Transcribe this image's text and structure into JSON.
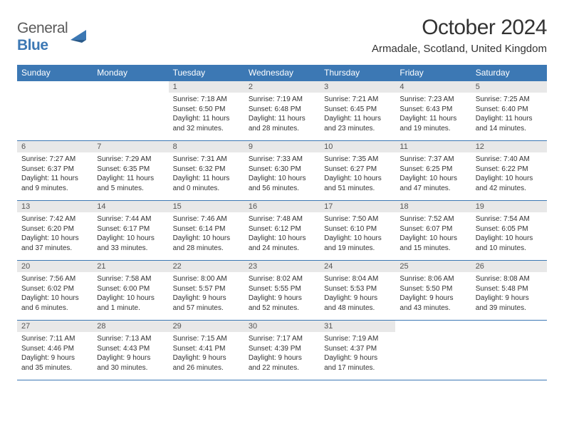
{
  "logo": {
    "text_general": "General",
    "text_blue": "Blue"
  },
  "header": {
    "month_title": "October 2024",
    "location": "Armadale, Scotland, United Kingdom"
  },
  "colors": {
    "header_bg": "#3c78b4",
    "header_text": "#ffffff",
    "daynum_bg": "#e8e8e8",
    "border": "#3c78b4",
    "body_text": "#333333"
  },
  "day_names": [
    "Sunday",
    "Monday",
    "Tuesday",
    "Wednesday",
    "Thursday",
    "Friday",
    "Saturday"
  ],
  "weeks": [
    [
      null,
      null,
      {
        "n": "1",
        "sr": "7:18 AM",
        "ss": "6:50 PM",
        "dl": "11 hours and 32 minutes."
      },
      {
        "n": "2",
        "sr": "7:19 AM",
        "ss": "6:48 PM",
        "dl": "11 hours and 28 minutes."
      },
      {
        "n": "3",
        "sr": "7:21 AM",
        "ss": "6:45 PM",
        "dl": "11 hours and 23 minutes."
      },
      {
        "n": "4",
        "sr": "7:23 AM",
        "ss": "6:43 PM",
        "dl": "11 hours and 19 minutes."
      },
      {
        "n": "5",
        "sr": "7:25 AM",
        "ss": "6:40 PM",
        "dl": "11 hours and 14 minutes."
      }
    ],
    [
      {
        "n": "6",
        "sr": "7:27 AM",
        "ss": "6:37 PM",
        "dl": "11 hours and 9 minutes."
      },
      {
        "n": "7",
        "sr": "7:29 AM",
        "ss": "6:35 PM",
        "dl": "11 hours and 5 minutes."
      },
      {
        "n": "8",
        "sr": "7:31 AM",
        "ss": "6:32 PM",
        "dl": "11 hours and 0 minutes."
      },
      {
        "n": "9",
        "sr": "7:33 AM",
        "ss": "6:30 PM",
        "dl": "10 hours and 56 minutes."
      },
      {
        "n": "10",
        "sr": "7:35 AM",
        "ss": "6:27 PM",
        "dl": "10 hours and 51 minutes."
      },
      {
        "n": "11",
        "sr": "7:37 AM",
        "ss": "6:25 PM",
        "dl": "10 hours and 47 minutes."
      },
      {
        "n": "12",
        "sr": "7:40 AM",
        "ss": "6:22 PM",
        "dl": "10 hours and 42 minutes."
      }
    ],
    [
      {
        "n": "13",
        "sr": "7:42 AM",
        "ss": "6:20 PM",
        "dl": "10 hours and 37 minutes."
      },
      {
        "n": "14",
        "sr": "7:44 AM",
        "ss": "6:17 PM",
        "dl": "10 hours and 33 minutes."
      },
      {
        "n": "15",
        "sr": "7:46 AM",
        "ss": "6:14 PM",
        "dl": "10 hours and 28 minutes."
      },
      {
        "n": "16",
        "sr": "7:48 AM",
        "ss": "6:12 PM",
        "dl": "10 hours and 24 minutes."
      },
      {
        "n": "17",
        "sr": "7:50 AM",
        "ss": "6:10 PM",
        "dl": "10 hours and 19 minutes."
      },
      {
        "n": "18",
        "sr": "7:52 AM",
        "ss": "6:07 PM",
        "dl": "10 hours and 15 minutes."
      },
      {
        "n": "19",
        "sr": "7:54 AM",
        "ss": "6:05 PM",
        "dl": "10 hours and 10 minutes."
      }
    ],
    [
      {
        "n": "20",
        "sr": "7:56 AM",
        "ss": "6:02 PM",
        "dl": "10 hours and 6 minutes."
      },
      {
        "n": "21",
        "sr": "7:58 AM",
        "ss": "6:00 PM",
        "dl": "10 hours and 1 minute."
      },
      {
        "n": "22",
        "sr": "8:00 AM",
        "ss": "5:57 PM",
        "dl": "9 hours and 57 minutes."
      },
      {
        "n": "23",
        "sr": "8:02 AM",
        "ss": "5:55 PM",
        "dl": "9 hours and 52 minutes."
      },
      {
        "n": "24",
        "sr": "8:04 AM",
        "ss": "5:53 PM",
        "dl": "9 hours and 48 minutes."
      },
      {
        "n": "25",
        "sr": "8:06 AM",
        "ss": "5:50 PM",
        "dl": "9 hours and 43 minutes."
      },
      {
        "n": "26",
        "sr": "8:08 AM",
        "ss": "5:48 PM",
        "dl": "9 hours and 39 minutes."
      }
    ],
    [
      {
        "n": "27",
        "sr": "7:11 AM",
        "ss": "4:46 PM",
        "dl": "9 hours and 35 minutes."
      },
      {
        "n": "28",
        "sr": "7:13 AM",
        "ss": "4:43 PM",
        "dl": "9 hours and 30 minutes."
      },
      {
        "n": "29",
        "sr": "7:15 AM",
        "ss": "4:41 PM",
        "dl": "9 hours and 26 minutes."
      },
      {
        "n": "30",
        "sr": "7:17 AM",
        "ss": "4:39 PM",
        "dl": "9 hours and 22 minutes."
      },
      {
        "n": "31",
        "sr": "7:19 AM",
        "ss": "4:37 PM",
        "dl": "9 hours and 17 minutes."
      },
      null,
      null
    ]
  ],
  "labels": {
    "sunrise": "Sunrise: ",
    "sunset": "Sunset: ",
    "daylight": "Daylight: "
  }
}
